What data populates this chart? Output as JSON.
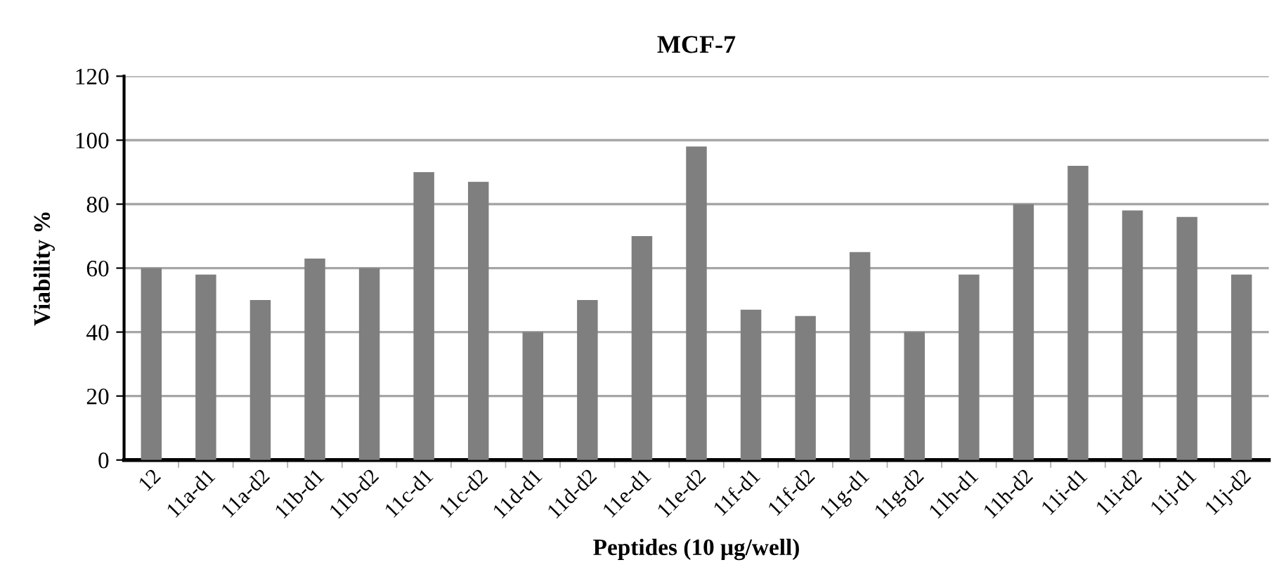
{
  "chart_data": {
    "type": "bar",
    "title": "MCF-7",
    "xlabel": "Peptides (10 μg/well)",
    "ylabel": "Viability %",
    "categories": [
      "12",
      "11a-d1",
      "11a-d2",
      "11b-d1",
      "11b-d2",
      "11c-d1",
      "11c-d2",
      "11d-d1",
      "11d-d2",
      "11e-d1",
      "11e-d2",
      "11f-d1",
      "11f-d2",
      "11g-d1",
      "11g-d2",
      "11h-d1",
      "11h-d2",
      "11i-d1",
      "11i-d2",
      "11j-d1",
      "11j-d2"
    ],
    "values": [
      60,
      58,
      50,
      63,
      60,
      90,
      87,
      40,
      50,
      70,
      98,
      47,
      45,
      65,
      40,
      58,
      80,
      92,
      78,
      76,
      58
    ],
    "color": "#7f7f7f",
    "ylim": [
      0,
      120
    ],
    "yticks": [
      0,
      20,
      40,
      60,
      80,
      100,
      120
    ],
    "grid": "y"
  }
}
